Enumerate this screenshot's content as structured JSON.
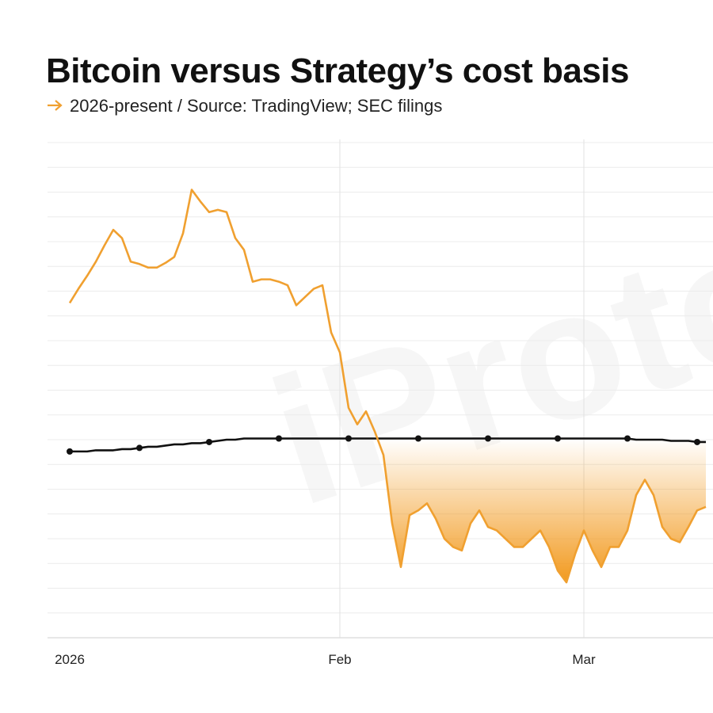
{
  "chart_data": {
    "type": "line",
    "title": "Bitcoin versus Strategy’s cost basis",
    "subtitle": "2026-present / Source: TradingView; SEC filings",
    "watermark": "iProto",
    "categories": [
      "2026",
      null,
      null,
      null,
      null,
      null,
      null,
      null,
      null,
      null,
      null,
      null,
      null,
      null,
      null,
      null,
      null,
      null,
      null,
      null,
      null,
      null,
      null,
      null,
      null,
      null,
      null,
      null,
      null,
      null,
      null,
      "Feb",
      null,
      null,
      null,
      null,
      null,
      null,
      null,
      null,
      null,
      null,
      null,
      null,
      null,
      null,
      null,
      null,
      null,
      null,
      null,
      null,
      null,
      null,
      null,
      null,
      null,
      null,
      null,
      "Mar",
      null,
      null,
      null,
      null,
      null,
      null,
      null,
      null,
      null,
      null,
      null,
      null,
      null,
      null
    ],
    "series": [
      {
        "color": "#f0a030",
        "values": [
          87400,
          88600,
          89700,
          90900,
          92300,
          93600,
          92900,
          90900,
          90700,
          90400,
          90400,
          90800,
          91300,
          93300,
          97000,
          96000,
          95100,
          95300,
          95100,
          92900,
          91900,
          89200,
          89400,
          89400,
          89200,
          88900,
          87200,
          87900,
          88600,
          88900,
          84900,
          83200,
          78500,
          77100,
          78200,
          76500,
          74500,
          68700,
          65000,
          69400,
          69800,
          70400,
          69100,
          67400,
          66700,
          66400,
          68700,
          69800,
          68400,
          68100,
          67400,
          66700,
          66700,
          67400,
          68100,
          66700,
          64700,
          63700,
          66100,
          68100,
          66400,
          65000,
          66700,
          66700,
          68100,
          71100,
          72400,
          71100,
          68400,
          67400,
          67100,
          68400,
          69800,
          70100
        ]
      },
      {
        "color": "#111111",
        "values": [
          74800,
          74800,
          74800,
          74900,
          74900,
          74900,
          75000,
          75000,
          75100,
          75200,
          75200,
          75300,
          75400,
          75400,
          75500,
          75500,
          75600,
          75700,
          75800,
          75800,
          75900,
          75900,
          75900,
          75900,
          75900,
          75900,
          75900,
          75900,
          75900,
          75900,
          75900,
          75900,
          75900,
          75900,
          75900,
          75900,
          75900,
          75900,
          75900,
          75900,
          75900,
          75900,
          75900,
          75900,
          75900,
          75900,
          75900,
          75900,
          75900,
          75900,
          75900,
          75900,
          75900,
          75900,
          75900,
          75900,
          75900,
          75900,
          75900,
          75900,
          75900,
          75900,
          75900,
          75900,
          75900,
          75800,
          75800,
          75800,
          75800,
          75700,
          75700,
          75700,
          75600,
          75600
        ]
      }
    ],
    "fill_color": "#f29a1f",
    "ylim": [
      59000,
      101000
    ],
    "yticks": [
      59000,
      61100,
      63200,
      65300,
      67400,
      69500,
      71600,
      73700,
      75800,
      77900,
      80000,
      82100,
      84200,
      86300,
      88400,
      90500,
      92600,
      94700,
      96800,
      98900,
      101000
    ],
    "grid": true
  }
}
